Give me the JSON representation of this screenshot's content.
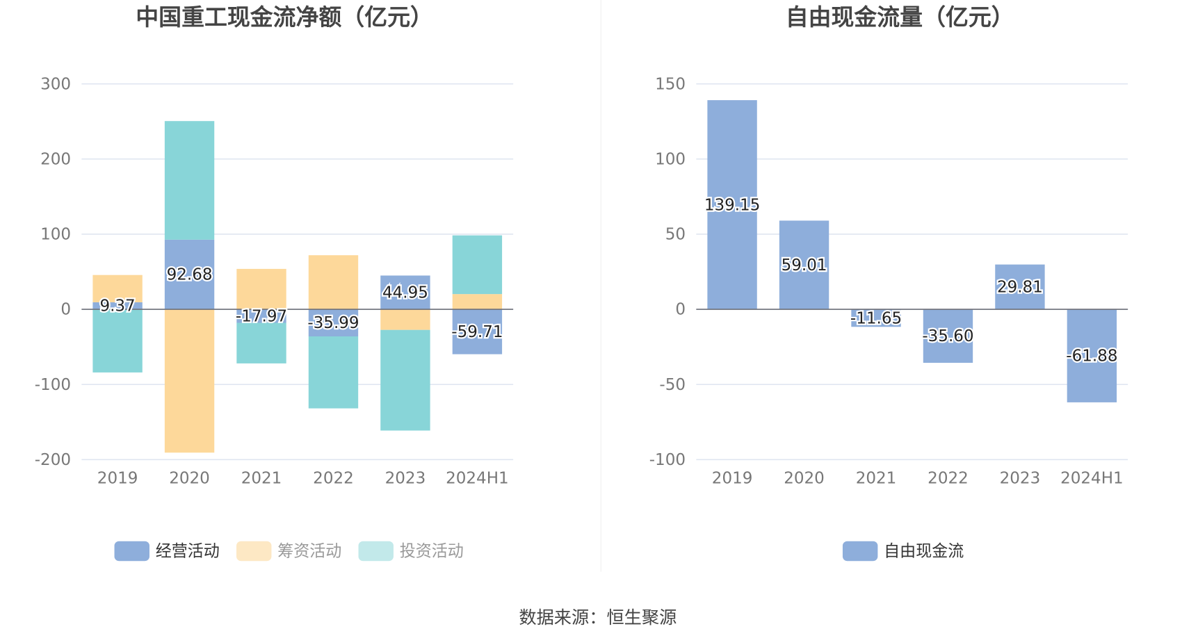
{
  "source": "数据来源：恒生聚源",
  "chart_data": [
    {
      "type": "bar",
      "stacked": true,
      "title": "中国重工现金流净额（亿元）",
      "categories": [
        "2019",
        "2020",
        "2021",
        "2022",
        "2023",
        "2024H1"
      ],
      "ylim": [
        -200,
        300
      ],
      "yticks": [
        300,
        200,
        100,
        0,
        -100,
        -200
      ],
      "grid": true,
      "legend_position": "bottom",
      "series": [
        {
          "name": "经营活动",
          "color": "#8eaedb",
          "values": [
            9.37,
            92.68,
            -17.97,
            -35.99,
            44.95,
            -59.71
          ],
          "labels": [
            "9.37",
            "92.68",
            "-17.97",
            "-35.99",
            "44.95",
            "-59.71"
          ]
        },
        {
          "name": "筹资活动",
          "color": "#fdd89a",
          "values": [
            36.3,
            -190.7,
            53.8,
            72.0,
            -27.4,
            20.3
          ]
        },
        {
          "name": "投资活动",
          "color": "#88d5d8",
          "values": [
            -84.0,
            157.8,
            -54.0,
            -95.8,
            -133.9,
            78.1
          ]
        }
      ],
      "legend_colors": [
        "#8eaedb",
        "#fde8c4",
        "#c2e9ea"
      ],
      "legend_text_colors": [
        "#333333",
        "#999999",
        "#999999"
      ]
    },
    {
      "type": "bar",
      "title": "自由现金流量（亿元）",
      "categories": [
        "2019",
        "2020",
        "2021",
        "2022",
        "2023",
        "2024H1"
      ],
      "ylim": [
        -100,
        150
      ],
      "yticks": [
        150,
        100,
        50,
        0,
        -50,
        -100
      ],
      "grid": true,
      "legend_position": "bottom",
      "series": [
        {
          "name": "自由现金流",
          "color": "#8eaedb",
          "values": [
            139.15,
            59.01,
            -11.65,
            -35.6,
            29.81,
            -61.88
          ],
          "labels": [
            "139.15",
            "59.01",
            "-11.65",
            "-35.60",
            "29.81",
            "-61.88"
          ]
        }
      ],
      "legend_colors": [
        "#8eaedb"
      ],
      "legend_text_colors": [
        "#333333"
      ]
    }
  ]
}
